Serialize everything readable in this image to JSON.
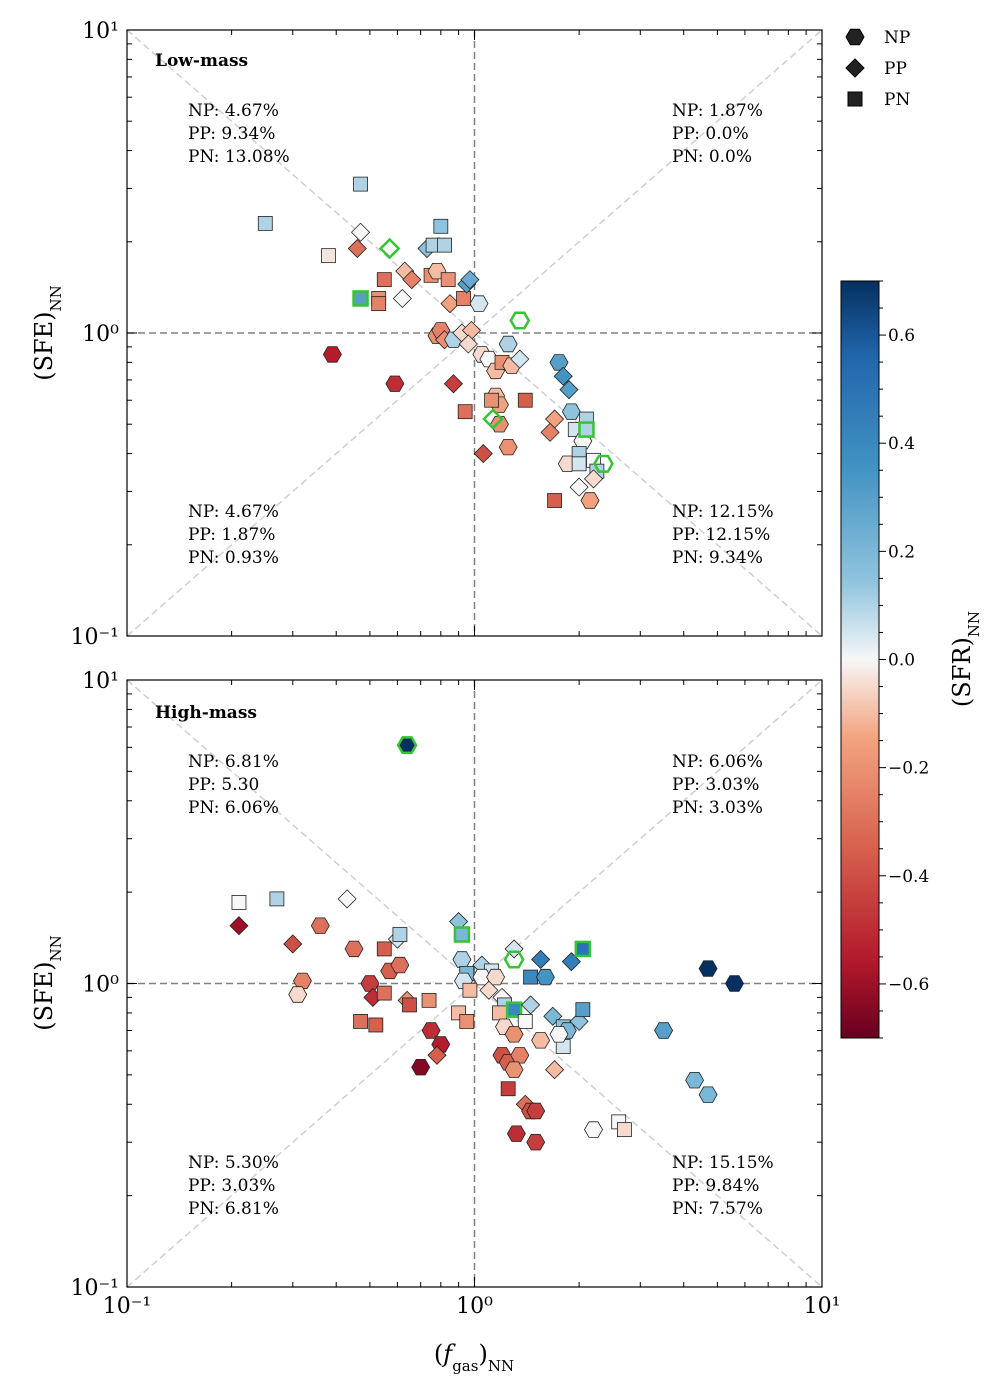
{
  "chart_data": [
    {
      "type": "scatter",
      "title": "Low-mass",
      "xlabel": "(f_gas)NN",
      "ylabel": "(SFE)NN",
      "xscale": "log",
      "yscale": "log",
      "xlim": [
        0.1,
        10
      ],
      "ylim": [
        0.1,
        10
      ],
      "x_ticks": [
        "10^-1",
        "10^0",
        "10^1"
      ],
      "y_ticks": [
        "10^-1",
        "10^0",
        "10^1"
      ],
      "reference_lines": [
        "x=1",
        "y=1",
        "y=x",
        "y=1/x"
      ],
      "quadrant_text": {
        "top_left": [
          "NP: 4.67%",
          "PP: 9.34%",
          "PN: 13.08%"
        ],
        "top_right": [
          "NP: 1.87%",
          "PP: 0.0%",
          "PN: 0.0%"
        ],
        "bottom_left": [
          "NP: 4.67%",
          "PP: 1.87%",
          "PN: 0.93%"
        ],
        "bottom_right": [
          "NP: 12.15%",
          "PP: 12.15%",
          "PN: 9.34%"
        ]
      },
      "points": [
        {
          "x": 0.25,
          "y": 2.3,
          "m": "PN",
          "c": 0.1
        },
        {
          "x": 0.47,
          "y": 3.1,
          "m": "PN",
          "c": 0.1
        },
        {
          "x": 0.38,
          "y": 1.8,
          "m": "PN",
          "c": -0.03
        },
        {
          "x": 0.47,
          "y": 2.15,
          "m": "PP",
          "c": 0.0
        },
        {
          "x": 0.46,
          "y": 1.9,
          "m": "PP",
          "c": -0.3
        },
        {
          "x": 0.57,
          "y": 1.9,
          "m": "PP",
          "c": 0.0,
          "hl": true
        },
        {
          "x": 0.53,
          "y": 1.3,
          "m": "PN",
          "c": -0.2
        },
        {
          "x": 0.53,
          "y": 1.25,
          "m": "PN",
          "c": -0.25
        },
        {
          "x": 0.55,
          "y": 1.5,
          "m": "PN",
          "c": -0.3
        },
        {
          "x": 0.47,
          "y": 1.3,
          "m": "PN",
          "c": 0.3,
          "hl": true
        },
        {
          "x": 0.39,
          "y": 0.85,
          "m": "NP",
          "c": -0.55
        },
        {
          "x": 0.59,
          "y": 0.68,
          "m": "NP",
          "c": -0.5
        },
        {
          "x": 0.63,
          "y": 1.6,
          "m": "PP",
          "c": -0.1
        },
        {
          "x": 0.66,
          "y": 1.5,
          "m": "PP",
          "c": -0.25
        },
        {
          "x": 0.62,
          "y": 1.3,
          "m": "PP",
          "c": 0.0
        },
        {
          "x": 0.73,
          "y": 1.9,
          "m": "PP",
          "c": 0.15
        },
        {
          "x": 0.76,
          "y": 1.95,
          "m": "PN",
          "c": 0.1
        },
        {
          "x": 0.8,
          "y": 2.25,
          "m": "PN",
          "c": 0.15
        },
        {
          "x": 0.82,
          "y": 1.95,
          "m": "PN",
          "c": 0.1
        },
        {
          "x": 0.75,
          "y": 1.55,
          "m": "PN",
          "c": -0.2
        },
        {
          "x": 0.78,
          "y": 1.6,
          "m": "NP",
          "c": -0.1
        },
        {
          "x": 0.84,
          "y": 1.5,
          "m": "PN",
          "c": -0.2
        },
        {
          "x": 0.85,
          "y": 1.25,
          "m": "PP",
          "c": -0.15
        },
        {
          "x": 0.93,
          "y": 1.3,
          "m": "PN",
          "c": -0.25
        },
        {
          "x": 0.95,
          "y": 1.45,
          "m": "PP",
          "c": 0.3
        },
        {
          "x": 0.97,
          "y": 1.5,
          "m": "PP",
          "c": 0.25
        },
        {
          "x": 1.03,
          "y": 1.25,
          "m": "NP",
          "c": 0.05
        },
        {
          "x": 0.78,
          "y": 0.98,
          "m": "NP",
          "c": -0.2
        },
        {
          "x": 0.8,
          "y": 1.02,
          "m": "NP",
          "c": -0.25
        },
        {
          "x": 0.82,
          "y": 0.95,
          "m": "PP",
          "c": -0.2
        },
        {
          "x": 0.87,
          "y": 0.95,
          "m": "NP",
          "c": 0.1
        },
        {
          "x": 0.92,
          "y": 1.0,
          "m": "PP",
          "c": -0.05
        },
        {
          "x": 0.98,
          "y": 1.02,
          "m": "PP",
          "c": -0.1
        },
        {
          "x": 0.96,
          "y": 0.92,
          "m": "PP",
          "c": -0.05
        },
        {
          "x": 1.05,
          "y": 0.85,
          "m": "NP",
          "c": -0.05
        },
        {
          "x": 1.1,
          "y": 0.82,
          "m": "NP",
          "c": 0.0
        },
        {
          "x": 1.15,
          "y": 0.75,
          "m": "NP",
          "c": -0.1
        },
        {
          "x": 1.25,
          "y": 0.92,
          "m": "NP",
          "c": 0.1
        },
        {
          "x": 1.2,
          "y": 0.8,
          "m": "PN",
          "c": -0.2
        },
        {
          "x": 1.28,
          "y": 0.78,
          "m": "NP",
          "c": -0.1
        },
        {
          "x": 1.35,
          "y": 0.82,
          "m": "PP",
          "c": 0.05
        },
        {
          "x": 1.35,
          "y": 1.1,
          "m": "NP",
          "c": 0.0,
          "hl": true
        },
        {
          "x": 0.87,
          "y": 0.68,
          "m": "PP",
          "c": -0.45
        },
        {
          "x": 0.94,
          "y": 0.55,
          "m": "PN",
          "c": -0.3
        },
        {
          "x": 1.15,
          "y": 0.62,
          "m": "NP",
          "c": -0.1
        },
        {
          "x": 1.18,
          "y": 0.58,
          "m": "NP",
          "c": -0.15
        },
        {
          "x": 1.12,
          "y": 0.6,
          "m": "PN",
          "c": -0.2
        },
        {
          "x": 1.18,
          "y": 0.5,
          "m": "NP",
          "c": -0.2
        },
        {
          "x": 1.13,
          "y": 0.52,
          "m": "PP",
          "c": 0.0,
          "hl": true
        },
        {
          "x": 1.4,
          "y": 0.6,
          "m": "PN",
          "c": -0.35
        },
        {
          "x": 1.06,
          "y": 0.4,
          "m": "PP",
          "c": -0.4
        },
        {
          "x": 1.25,
          "y": 0.42,
          "m": "NP",
          "c": -0.2
        },
        {
          "x": 1.75,
          "y": 0.8,
          "m": "NP",
          "c": 0.3
        },
        {
          "x": 1.8,
          "y": 0.72,
          "m": "PP",
          "c": 0.35
        },
        {
          "x": 1.87,
          "y": 0.65,
          "m": "PP",
          "c": 0.3
        },
        {
          "x": 1.9,
          "y": 0.55,
          "m": "NP",
          "c": 0.15
        },
        {
          "x": 1.7,
          "y": 0.52,
          "m": "PP",
          "c": -0.15
        },
        {
          "x": 1.65,
          "y": 0.47,
          "m": "PP",
          "c": -0.25
        },
        {
          "x": 1.95,
          "y": 0.48,
          "m": "PN",
          "c": 0.05
        },
        {
          "x": 2.05,
          "y": 0.44,
          "m": "NP",
          "c": 0.0
        },
        {
          "x": 2.1,
          "y": 0.52,
          "m": "PN",
          "c": 0.1
        },
        {
          "x": 2.1,
          "y": 0.48,
          "m": "PN",
          "c": 0.1,
          "hl": true
        },
        {
          "x": 2.0,
          "y": 0.4,
          "m": "PN",
          "c": 0.1
        },
        {
          "x": 1.85,
          "y": 0.37,
          "m": "NP",
          "c": -0.05
        },
        {
          "x": 2.0,
          "y": 0.37,
          "m": "PN",
          "c": 0.05
        },
        {
          "x": 2.2,
          "y": 0.38,
          "m": "PN",
          "c": 0.0
        },
        {
          "x": 2.25,
          "y": 0.35,
          "m": "PN",
          "c": 0.1
        },
        {
          "x": 2.35,
          "y": 0.37,
          "m": "NP",
          "c": 0.15,
          "hl": true
        },
        {
          "x": 2.2,
          "y": 0.33,
          "m": "PP",
          "c": -0.05
        },
        {
          "x": 2.0,
          "y": 0.31,
          "m": "PP",
          "c": 0.0
        },
        {
          "x": 2.15,
          "y": 0.28,
          "m": "NP",
          "c": -0.15
        },
        {
          "x": 1.7,
          "y": 0.28,
          "m": "PN",
          "c": -0.35
        }
      ]
    },
    {
      "type": "scatter",
      "title": "High-mass",
      "xlabel": "(f_gas)NN",
      "ylabel": "(SFE)NN",
      "xscale": "log",
      "yscale": "log",
      "xlim": [
        0.1,
        10
      ],
      "ylim": [
        0.1,
        10
      ],
      "x_ticks": [
        "10^-1",
        "10^0",
        "10^1"
      ],
      "y_ticks": [
        "10^-1",
        "10^0",
        "10^1"
      ],
      "reference_lines": [
        "x=1",
        "y=1",
        "y=x",
        "y=1/x"
      ],
      "quadrant_text": {
        "top_left": [
          "NP: 6.81%",
          "PP: 5.30",
          "PN: 6.06%"
        ],
        "top_right": [
          "NP: 6.06%",
          "PP: 3.03%",
          "PN: 3.03%"
        ],
        "bottom_left": [
          "NP: 5.30%",
          "PP: 3.03%",
          "PN: 6.81%"
        ],
        "bottom_right": [
          "NP: 15.15%",
          "PP: 9.84%",
          "PN: 7.57%"
        ]
      },
      "points": [
        {
          "x": 0.64,
          "y": 6.1,
          "m": "NP",
          "c": 0.7,
          "hl": true
        },
        {
          "x": 0.21,
          "y": 1.85,
          "m": "PN",
          "c": 0.0
        },
        {
          "x": 0.27,
          "y": 1.9,
          "m": "PN",
          "c": 0.1
        },
        {
          "x": 0.21,
          "y": 1.55,
          "m": "PP",
          "c": -0.6
        },
        {
          "x": 0.3,
          "y": 1.35,
          "m": "PP",
          "c": -0.4
        },
        {
          "x": 0.43,
          "y": 1.9,
          "m": "PP",
          "c": 0.0
        },
        {
          "x": 0.36,
          "y": 1.55,
          "m": "NP",
          "c": -0.3
        },
        {
          "x": 0.45,
          "y": 1.3,
          "m": "NP",
          "c": -0.3
        },
        {
          "x": 0.32,
          "y": 1.02,
          "m": "NP",
          "c": -0.25
        },
        {
          "x": 0.31,
          "y": 0.92,
          "m": "NP",
          "c": -0.05
        },
        {
          "x": 0.55,
          "y": 1.3,
          "m": "PN",
          "c": -0.35
        },
        {
          "x": 0.57,
          "y": 1.1,
          "m": "NP",
          "c": -0.35
        },
        {
          "x": 0.61,
          "y": 1.15,
          "m": "NP",
          "c": -0.3
        },
        {
          "x": 0.6,
          "y": 1.4,
          "m": "PP",
          "c": 0.05
        },
        {
          "x": 0.61,
          "y": 1.45,
          "m": "PN",
          "c": 0.1
        },
        {
          "x": 0.5,
          "y": 1.0,
          "m": "NP",
          "c": -0.45
        },
        {
          "x": 0.51,
          "y": 0.9,
          "m": "PP",
          "c": -0.5
        },
        {
          "x": 0.55,
          "y": 0.93,
          "m": "PN",
          "c": -0.3
        },
        {
          "x": 0.47,
          "y": 0.75,
          "m": "PN",
          "c": -0.3
        },
        {
          "x": 0.52,
          "y": 0.73,
          "m": "PN",
          "c": -0.35
        },
        {
          "x": 0.64,
          "y": 0.88,
          "m": "PP",
          "c": -0.2
        },
        {
          "x": 0.65,
          "y": 0.85,
          "m": "PN",
          "c": -0.4
        },
        {
          "x": 0.74,
          "y": 0.88,
          "m": "PN",
          "c": -0.2
        },
        {
          "x": 0.75,
          "y": 0.7,
          "m": "NP",
          "c": -0.5
        },
        {
          "x": 0.8,
          "y": 0.63,
          "m": "NP",
          "c": -0.55
        },
        {
          "x": 0.78,
          "y": 0.58,
          "m": "PP",
          "c": -0.35
        },
        {
          "x": 0.7,
          "y": 0.53,
          "m": "NP",
          "c": -0.65
        },
        {
          "x": 0.9,
          "y": 1.6,
          "m": "PP",
          "c": 0.15
        },
        {
          "x": 0.92,
          "y": 1.45,
          "m": "PN",
          "c": 0.2,
          "hl": true
        },
        {
          "x": 0.92,
          "y": 1.2,
          "m": "NP",
          "c": 0.1
        },
        {
          "x": 0.95,
          "y": 1.08,
          "m": "PN",
          "c": 0.2
        },
        {
          "x": 0.93,
          "y": 1.02,
          "m": "NP",
          "c": 0.05
        },
        {
          "x": 0.97,
          "y": 0.95,
          "m": "PN",
          "c": -0.1
        },
        {
          "x": 0.9,
          "y": 0.8,
          "m": "PN",
          "c": -0.1
        },
        {
          "x": 0.95,
          "y": 0.75,
          "m": "PN",
          "c": -0.2
        },
        {
          "x": 1.05,
          "y": 1.15,
          "m": "PP",
          "c": 0.1
        },
        {
          "x": 1.12,
          "y": 1.1,
          "m": "PN",
          "c": 0.05
        },
        {
          "x": 1.05,
          "y": 1.05,
          "m": "NP",
          "c": 0.0
        },
        {
          "x": 1.15,
          "y": 1.05,
          "m": "NP",
          "c": -0.05
        },
        {
          "x": 1.1,
          "y": 0.95,
          "m": "PP",
          "c": -0.05
        },
        {
          "x": 1.2,
          "y": 0.9,
          "m": "PP",
          "c": 0.0
        },
        {
          "x": 1.22,
          "y": 0.85,
          "m": "PN",
          "c": 0.1
        },
        {
          "x": 1.18,
          "y": 0.8,
          "m": "PN",
          "c": -0.1
        },
        {
          "x": 1.22,
          "y": 0.72,
          "m": "NP",
          "c": -0.05
        },
        {
          "x": 1.3,
          "y": 1.3,
          "m": "PP",
          "c": 0.05
        },
        {
          "x": 1.3,
          "y": 1.2,
          "m": "NP",
          "c": 0.05,
          "hl": true
        },
        {
          "x": 1.3,
          "y": 0.82,
          "m": "PN",
          "c": 0.4,
          "hl": true
        },
        {
          "x": 1.4,
          "y": 0.75,
          "m": "PN",
          "c": 0.0
        },
        {
          "x": 1.45,
          "y": 0.85,
          "m": "PP",
          "c": 0.1
        },
        {
          "x": 1.3,
          "y": 0.68,
          "m": "NP",
          "c": -0.2
        },
        {
          "x": 1.45,
          "y": 1.05,
          "m": "PN",
          "c": 0.4
        },
        {
          "x": 1.6,
          "y": 1.05,
          "m": "NP",
          "c": 0.35
        },
        {
          "x": 1.55,
          "y": 1.2,
          "m": "PP",
          "c": 0.45
        },
        {
          "x": 1.9,
          "y": 1.18,
          "m": "PP",
          "c": 0.45
        },
        {
          "x": 2.05,
          "y": 1.3,
          "m": "PN",
          "c": 0.5,
          "hl": true
        },
        {
          "x": 1.55,
          "y": 0.65,
          "m": "NP",
          "c": -0.1
        },
        {
          "x": 1.68,
          "y": 0.78,
          "m": "PP",
          "c": 0.2
        },
        {
          "x": 1.8,
          "y": 0.72,
          "m": "PN",
          "c": 0.15
        },
        {
          "x": 1.85,
          "y": 0.7,
          "m": "NP",
          "c": 0.2
        },
        {
          "x": 2.0,
          "y": 0.75,
          "m": "PP",
          "c": 0.15
        },
        {
          "x": 2.05,
          "y": 0.82,
          "m": "PN",
          "c": 0.3
        },
        {
          "x": 1.8,
          "y": 0.62,
          "m": "PN",
          "c": 0.05
        },
        {
          "x": 1.75,
          "y": 0.68,
          "m": "NP",
          "c": 0.0
        },
        {
          "x": 1.7,
          "y": 0.52,
          "m": "PP",
          "c": -0.1
        },
        {
          "x": 1.2,
          "y": 0.58,
          "m": "NP",
          "c": -0.4
        },
        {
          "x": 1.25,
          "y": 0.55,
          "m": "NP",
          "c": -0.35
        },
        {
          "x": 1.35,
          "y": 0.58,
          "m": "NP",
          "c": -0.25
        },
        {
          "x": 1.3,
          "y": 0.52,
          "m": "NP",
          "c": -0.2
        },
        {
          "x": 1.25,
          "y": 0.45,
          "m": "PN",
          "c": -0.45
        },
        {
          "x": 1.4,
          "y": 0.4,
          "m": "PP",
          "c": -0.3
        },
        {
          "x": 1.45,
          "y": 0.38,
          "m": "NP",
          "c": -0.4
        },
        {
          "x": 1.5,
          "y": 0.38,
          "m": "NP",
          "c": -0.45
        },
        {
          "x": 1.32,
          "y": 0.32,
          "m": "NP",
          "c": -0.5
        },
        {
          "x": 1.5,
          "y": 0.3,
          "m": "NP",
          "c": -0.45
        },
        {
          "x": 2.2,
          "y": 0.33,
          "m": "NP",
          "c": 0.0
        },
        {
          "x": 2.6,
          "y": 0.35,
          "m": "PN",
          "c": 0.0
        },
        {
          "x": 2.7,
          "y": 0.33,
          "m": "PN",
          "c": -0.05
        },
        {
          "x": 3.5,
          "y": 0.7,
          "m": "NP",
          "c": 0.3
        },
        {
          "x": 4.3,
          "y": 0.48,
          "m": "NP",
          "c": 0.2
        },
        {
          "x": 4.7,
          "y": 0.43,
          "m": "NP",
          "c": 0.2
        },
        {
          "x": 4.7,
          "y": 1.12,
          "m": "NP",
          "c": 0.7
        },
        {
          "x": 5.6,
          "y": 1.0,
          "m": "NP",
          "c": 0.7
        }
      ]
    }
  ],
  "legend": {
    "placement": "top-right",
    "items": [
      {
        "label": "NP",
        "marker": "hexagon"
      },
      {
        "label": "PP",
        "marker": "diamond"
      },
      {
        "label": "PN",
        "marker": "square"
      }
    ]
  },
  "colorbar": {
    "label": "(SFR)NN",
    "min": -0.7,
    "max": 0.7,
    "ticks": [
      0.6,
      0.4,
      0.2,
      0.0,
      -0.2,
      -0.4,
      -0.6
    ],
    "tick_labels": [
      "0.6",
      "0.4",
      "0.2",
      "0.0",
      "−0.2",
      "−0.4",
      "−0.6"
    ],
    "colormap": "RdBu",
    "highlight_edge_color": "#35c435"
  }
}
